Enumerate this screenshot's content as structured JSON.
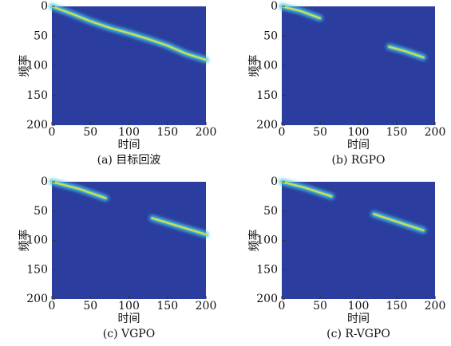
{
  "chart_data": [
    {
      "type": "heatmap",
      "caption": "(a) 目标回波",
      "xlabel": "时间",
      "ylabel": "频率",
      "x": [
        0,
        25,
        50,
        75,
        100,
        125,
        150,
        175,
        200
      ],
      "values": [
        0,
        12,
        25,
        36,
        45,
        55,
        66,
        80,
        90
      ],
      "xlim": [
        0,
        200
      ],
      "ylim": [
        200,
        0
      ],
      "xticks": [
        0,
        50,
        100,
        150,
        200
      ],
      "yticks": [
        0,
        50,
        100,
        150,
        200
      ]
    },
    {
      "type": "heatmap",
      "caption": "(b) RGPO",
      "xlabel": "时间",
      "ylabel": "频率",
      "x": [
        0,
        25,
        50,
        100,
        140,
        160,
        185
      ],
      "values": [
        0,
        8,
        20,
        null,
        68,
        75,
        86
      ],
      "xlim": [
        0,
        200
      ],
      "ylim": [
        200,
        0
      ],
      "xticks": [
        0,
        50,
        100,
        150,
        200
      ],
      "yticks": [
        0,
        50,
        100,
        150,
        200
      ]
    },
    {
      "type": "heatmap",
      "caption": "(c) VGPO",
      "xlabel": "时间",
      "ylabel": "频率",
      "x": [
        0,
        35,
        70,
        100,
        130,
        165,
        200
      ],
      "values": [
        0,
        12,
        28,
        null,
        62,
        76,
        90
      ],
      "xlim": [
        0,
        200
      ],
      "ylim": [
        200,
        0
      ],
      "xticks": [
        0,
        50,
        100,
        150,
        200
      ],
      "yticks": [
        0,
        50,
        100,
        150,
        200
      ]
    },
    {
      "type": "heatmap",
      "caption": "(c) R-VGPO",
      "xlabel": "时间",
      "ylabel": "频率",
      "x": [
        0,
        30,
        65,
        100,
        120,
        150,
        185
      ],
      "values": [
        0,
        10,
        25,
        null,
        55,
        68,
        83
      ],
      "xlim": [
        0,
        200
      ],
      "ylim": [
        200,
        0
      ],
      "xticks": [
        0,
        50,
        100,
        150,
        200
      ],
      "yticks": [
        0,
        50,
        100,
        150,
        200
      ]
    }
  ]
}
